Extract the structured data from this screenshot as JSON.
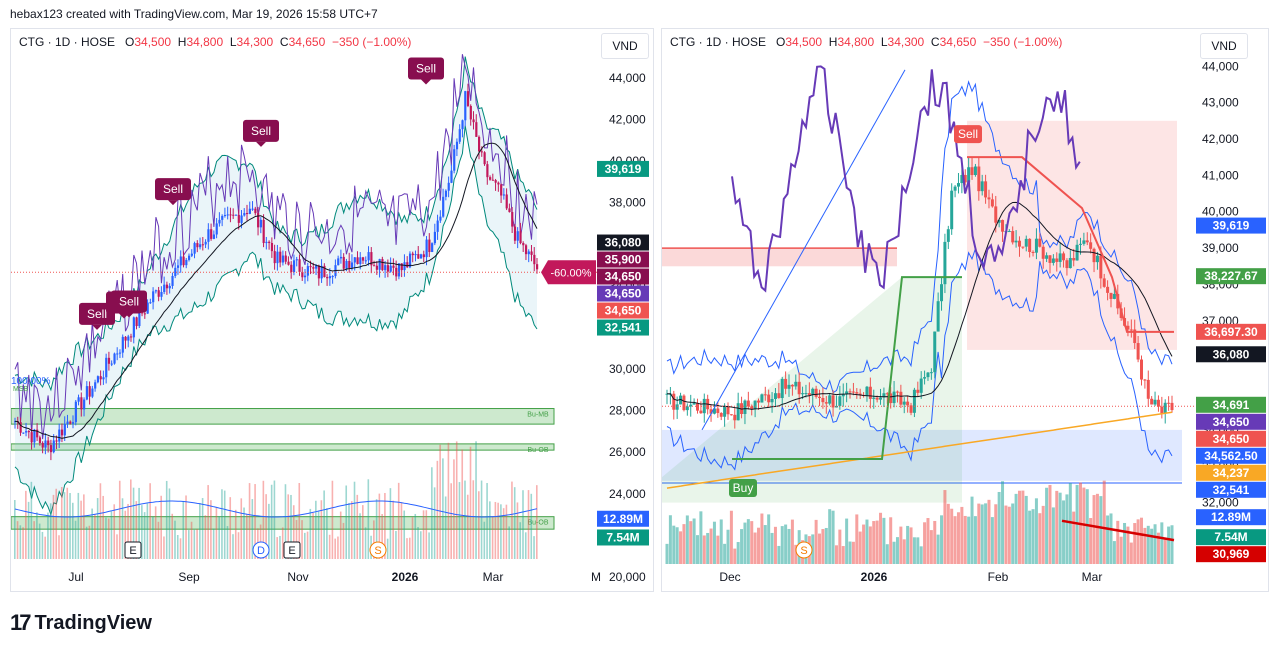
{
  "header": {
    "text": "hebax123 created with TradingView.com, Mar 19, 2026 15:58 UTC+7"
  },
  "brand": {
    "name": "TradingView",
    "mark": "17"
  },
  "colors": {
    "up": "#26a69a",
    "down": "#ef5350",
    "blue": "#2962ff",
    "purple": "#673ab7",
    "sell": "#880e4f",
    "buy": "#43a047",
    "band": "#8bc5e0"
  },
  "chart_data": [
    {
      "type": "candlestick",
      "legend": {
        "symbol": "CTG · 1D · HOSE",
        "o_label": "O",
        "o": "34,500",
        "h_label": "H",
        "h": "34,800",
        "l_label": "L",
        "l": "34,300",
        "c_label": "C",
        "c": "34,650",
        "chg": "−350 (−1.00%)"
      },
      "currency_button": "VND",
      "y_ticks": [
        "44,000",
        "42,000",
        "40,000",
        "38,000",
        "36,000",
        "34,000",
        "32,000",
        "30,000",
        "28,000",
        "26,000",
        "24,000",
        "22,000",
        "20,000"
      ],
      "ylim": [
        20000,
        45000
      ],
      "x_ticks": [
        "Jul",
        "Sep",
        "Nov",
        "2026",
        "Mar",
        "M"
      ],
      "price_badges": [
        {
          "value": "39,619",
          "price": 39619,
          "color": "#089981"
        },
        {
          "value": "36,080",
          "price": 36080,
          "color": "#131722"
        },
        {
          "value": "35,900",
          "price": 35900,
          "color": "#880e4f"
        },
        {
          "value": "34,650",
          "price": 34650,
          "color": "#880e4f"
        },
        {
          "value": "34,650",
          "price": 34650,
          "color": "#673ab7"
        },
        {
          "value": "34,650",
          "price": 34650,
          "color": "#ef5350"
        },
        {
          "value": "32,541",
          "price": 32541,
          "color": "#089981"
        },
        {
          "value": "12.89M",
          "price": 22800,
          "color": "#2962ff"
        },
        {
          "value": "7.54M",
          "price": 21900,
          "color": "#089981"
        }
      ],
      "annotations": {
        "sell_labels": [
          "Sell",
          "Sell",
          "Sell",
          "Sell",
          "Sell",
          "Sell"
        ],
        "pct_label": "-60.00%",
        "corner_pct": "100.00%",
        "corner_sub": "MSB",
        "zones": [
          "Bu-MB",
          "Bu-OB",
          "Bu-OB"
        ],
        "zone_prices": [
          [
            27350,
            28100
          ],
          [
            26100,
            26400
          ],
          [
            22300,
            22900
          ]
        ],
        "events": [
          "E",
          "D",
          "E",
          "S"
        ]
      }
    },
    {
      "type": "candlestick",
      "legend": {
        "symbol": "CTG · 1D · HOSE",
        "o_label": "O",
        "o": "34,500",
        "h_label": "H",
        "h": "34,800",
        "l_label": "L",
        "l": "34,300",
        "c_label": "C",
        "c": "34,650",
        "chg": "−350 (−1.00%)"
      },
      "currency_button": "VND",
      "y_ticks": [
        "44,000",
        "43,000",
        "42,000",
        "41,000",
        "40,000",
        "39,000",
        "38,000",
        "37,000",
        "34,000",
        "33,000",
        "32,000"
      ],
      "ylim": [
        31000,
        44200
      ],
      "x_ticks": [
        "Dec",
        "2026",
        "Feb",
        "Mar"
      ],
      "price_badges": [
        {
          "value": "39,619",
          "price": 39619,
          "color": "#2962ff"
        },
        {
          "value": "38,227.67",
          "price": 38227.67,
          "color": "#43a047"
        },
        {
          "value": "36,697.30",
          "price": 36697.3,
          "color": "#ef5350"
        },
        {
          "value": "36,080",
          "price": 36080,
          "color": "#131722"
        },
        {
          "value": "34,691",
          "price": 34691,
          "color": "#43a047"
        },
        {
          "value": "34,650",
          "price": 34650,
          "color": "#673ab7"
        },
        {
          "value": "34,650",
          "price": 34650,
          "color": "#ef5350"
        },
        {
          "value": "34,562.50",
          "price": 34562.5,
          "color": "#2962ff"
        },
        {
          "value": "34,237",
          "price": 34237,
          "color": "#f9a825"
        },
        {
          "value": "32,541",
          "price": 32541,
          "color": "#2962ff"
        },
        {
          "value": "12.89M",
          "price": 31600,
          "color": "#2962ff"
        },
        {
          "value": "7.54M",
          "price": 31050,
          "color": "#089981"
        },
        {
          "value": "30,969",
          "price": 30969,
          "color": "#d50000"
        }
      ],
      "annotations": {
        "sell_labels": [
          "Sell"
        ],
        "buy_labels": [
          "Buy"
        ],
        "events": [
          "S"
        ]
      }
    }
  ]
}
